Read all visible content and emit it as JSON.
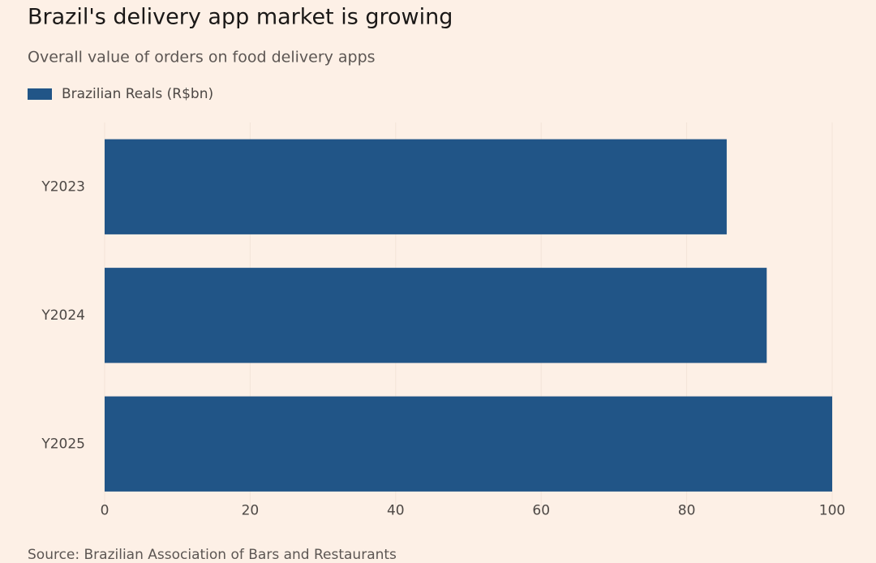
{
  "chart_data": {
    "type": "bar",
    "orientation": "horizontal",
    "title": "Brazil's delivery app market is growing",
    "subtitle": "Overall value of orders on food delivery apps",
    "categories": [
      "Y2023",
      "Y2024",
      "Y2025"
    ],
    "series": [
      {
        "name": "Brazilian Reals (R$bn)",
        "color": "#215587",
        "values": [
          85.5,
          91,
          100
        ]
      }
    ],
    "xlim": [
      0,
      100
    ],
    "xticks": [
      0,
      20,
      40,
      60,
      80,
      100
    ],
    "grid": true,
    "source": "Source: Brazilian Association of Bars and Restaurants"
  }
}
